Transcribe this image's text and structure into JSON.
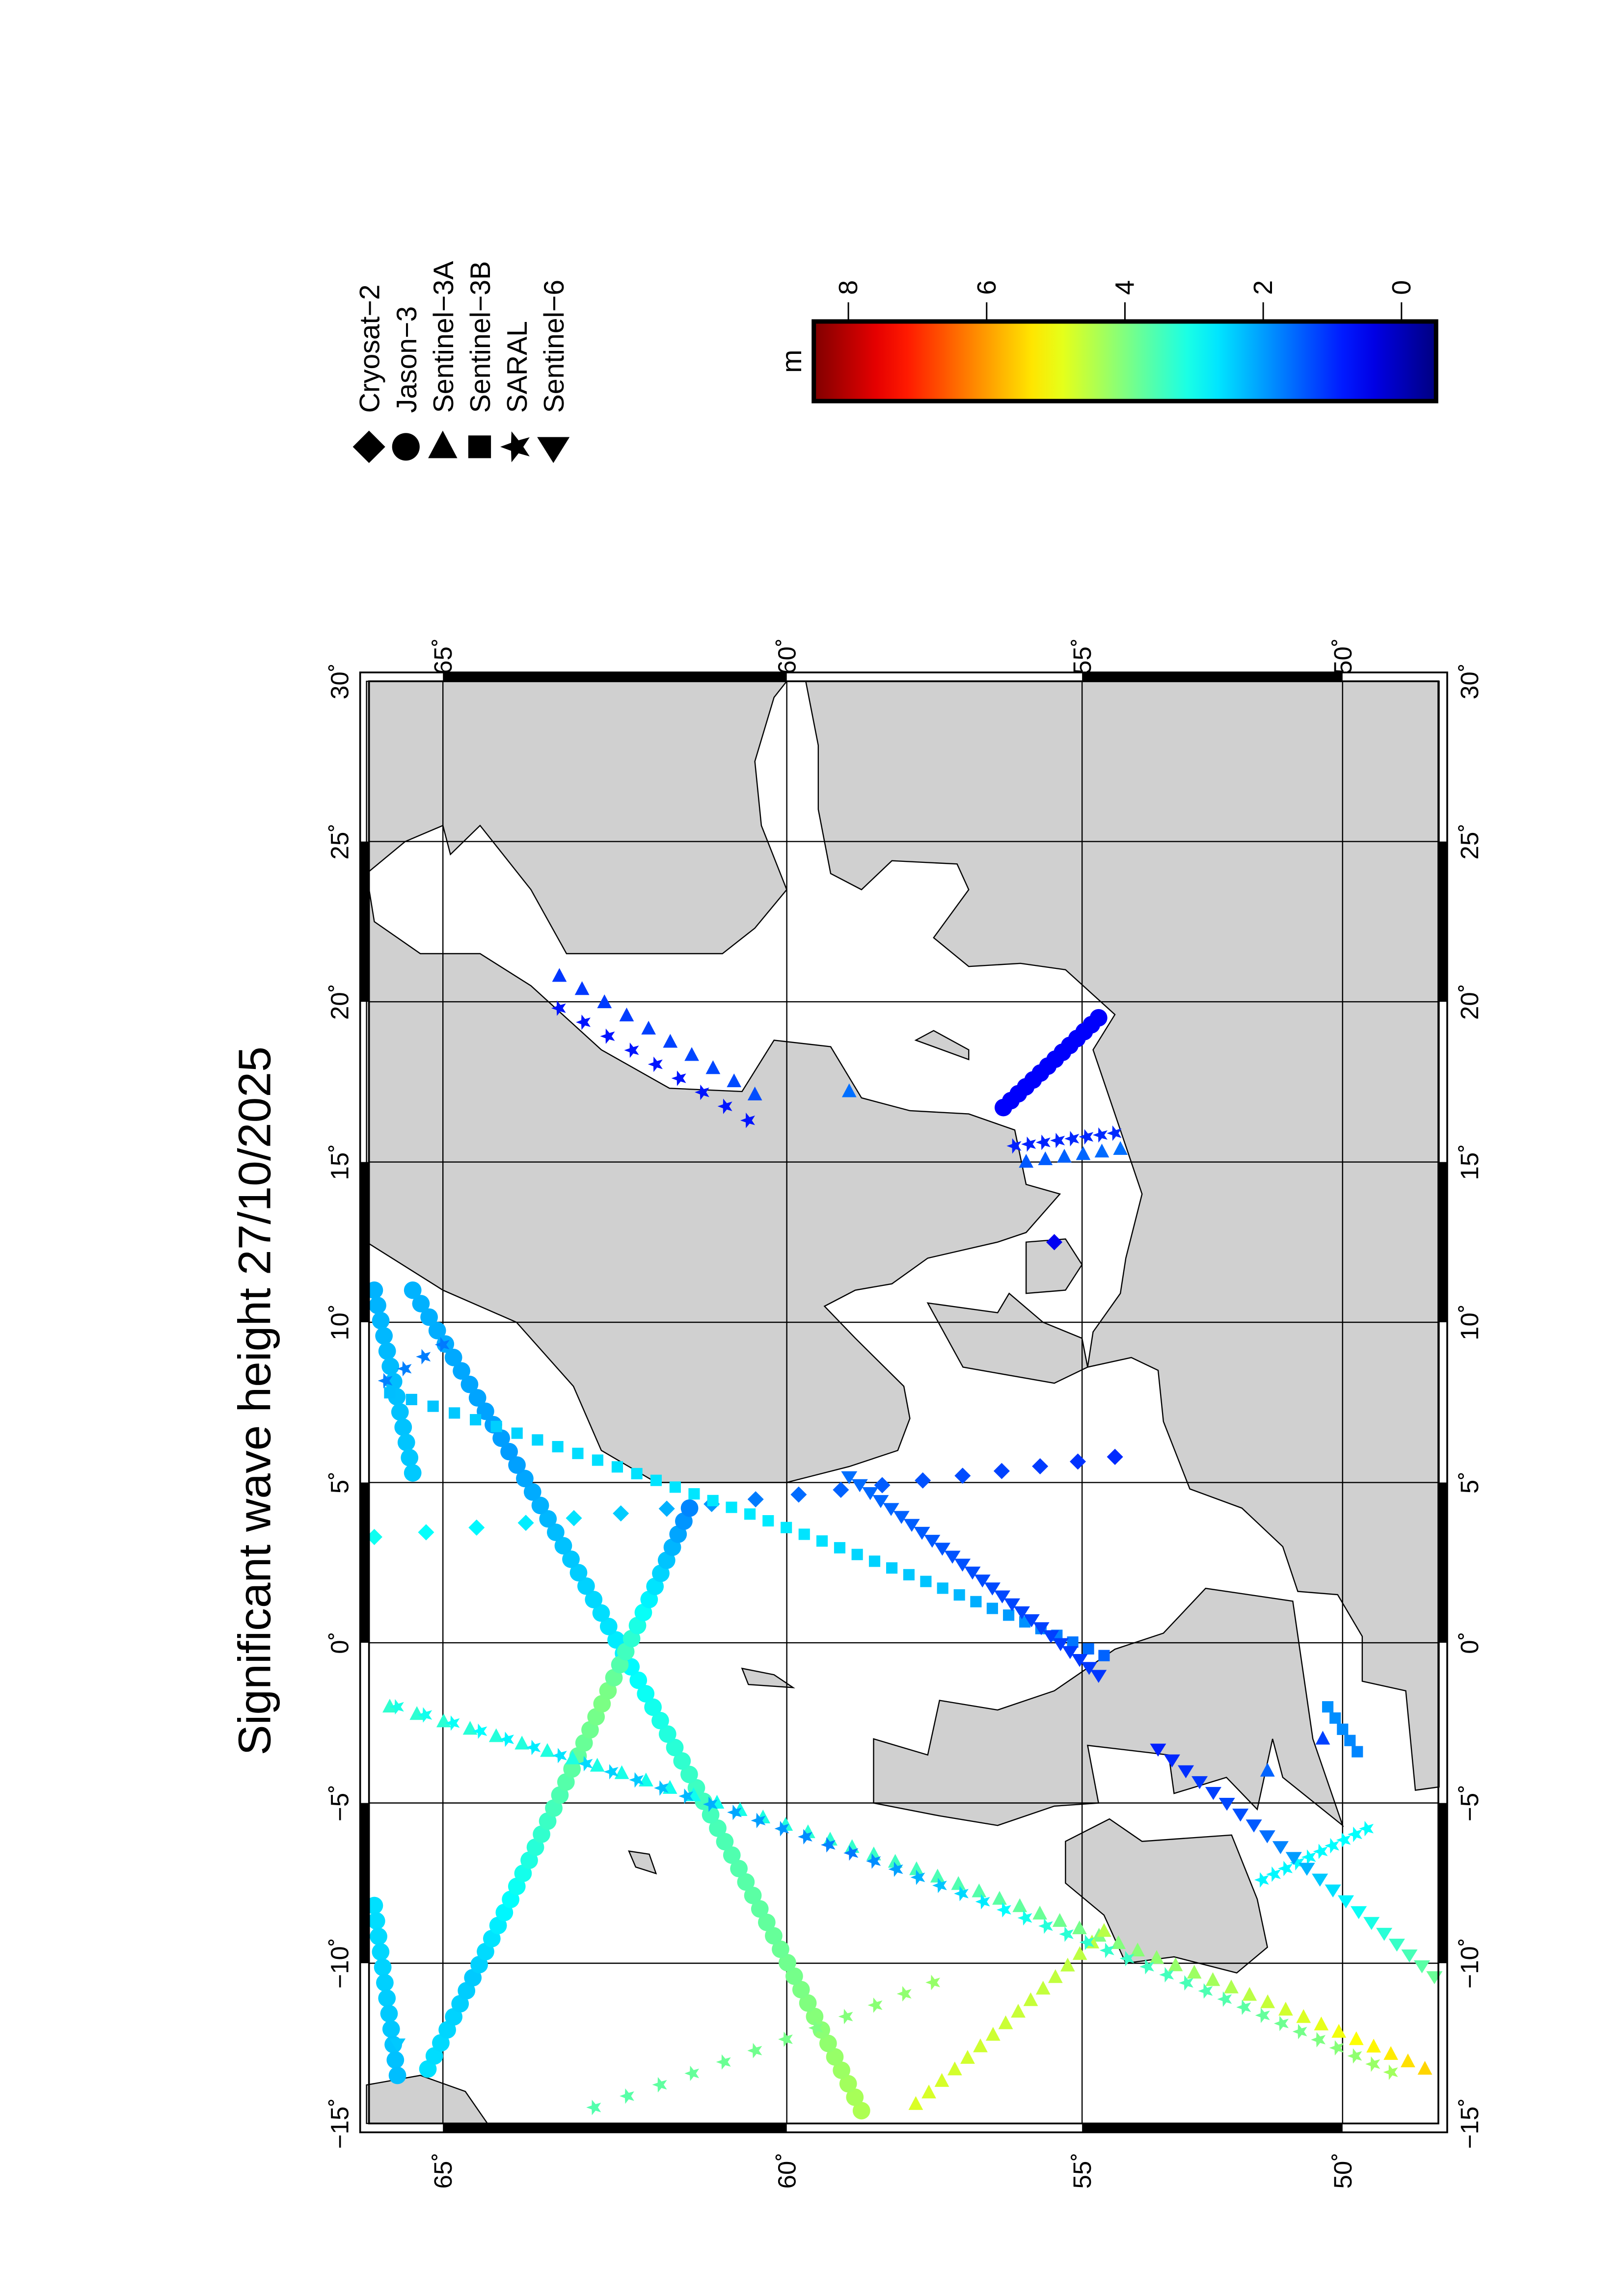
{
  "title": "Significant wave height 27/10/2025",
  "axes": {
    "lon_range": [
      -15,
      30
    ],
    "lat_range": [
      48,
      66
    ],
    "projection": "mercator",
    "grid": true,
    "lon_ticks": [
      -15,
      -10,
      -5,
      0,
      5,
      10,
      15,
      20,
      25,
      30
    ],
    "lon_tick_labels": [
      "−15˚",
      "−10˚",
      "−5˚",
      "0˚",
      "5˚",
      "10˚",
      "15˚",
      "20˚",
      "25˚",
      "30˚"
    ],
    "lat_ticks": [
      65,
      60,
      55,
      50
    ],
    "lat_tick_labels": [
      "65˚",
      "60˚",
      "55˚",
      "50˚"
    ]
  },
  "colors": {
    "land": "#d0d0d0",
    "ocean": "#ffffff",
    "coast": "#000000"
  },
  "colorbar": {
    "label": "m",
    "colormap": "jet",
    "range": [
      -0.5,
      8.5
    ],
    "ticks": [
      8,
      6,
      4,
      2,
      0
    ],
    "tick_labels": [
      "8",
      "6",
      "4",
      "2",
      "0"
    ]
  },
  "legend": [
    {
      "name": "Cryosat−2",
      "symbol": "diamond"
    },
    {
      "name": "Jason−3",
      "symbol": "circle"
    },
    {
      "name": "Sentinel−3A",
      "symbol": "triangle-left"
    },
    {
      "name": "Sentinel−3B",
      "symbol": "square"
    },
    {
      "name": "SARAL",
      "symbol": "star"
    },
    {
      "name": "Sentinel−6",
      "symbol": "triangle-right"
    }
  ],
  "tracks": [
    {
      "satellite": "Jason−3",
      "symbol": "circle",
      "from": [
        -14.6,
        58.8
      ],
      "to": [
        11.0,
        65.4
      ],
      "n": 62,
      "swh": [
        4.4,
        3.8,
        3.4,
        2.6,
        2.0,
        2.2
      ]
    },
    {
      "satellite": "Jason−3",
      "symbol": "circle",
      "from": [
        -13.3,
        65.2
      ],
      "to": [
        4.2,
        61.5
      ],
      "n": 44,
      "swh": [
        2.6,
        2.4,
        3.0,
        3.6,
        4.0,
        2.8,
        1.8
      ]
    },
    {
      "satellite": "Jason−3",
      "symbol": "circle",
      "from": [
        -8.2,
        65.9
      ],
      "to": [
        -13.5,
        65.6
      ],
      "n": 12,
      "swh": [
        2.6,
        2.3
      ]
    },
    {
      "satellite": "Jason−3",
      "symbol": "circle",
      "from": [
        11.0,
        65.9
      ],
      "to": [
        5.3,
        65.4
      ],
      "n": 13,
      "swh": [
        2.2,
        2.4
      ]
    },
    {
      "satellite": "Jason−3",
      "symbol": "circle",
      "from": [
        16.7,
        56.4
      ],
      "to": [
        19.5,
        54.7
      ],
      "n": 14,
      "swh": [
        0.6,
        0.6
      ]
    },
    {
      "satellite": "Cryosat−2",
      "symbol": "diamond",
      "from": [
        3.3,
        65.9
      ],
      "to": [
        5.8,
        54.4
      ],
      "n": 18,
      "swh": [
        3.0,
        2.6,
        1.6,
        1.3,
        1.0
      ]
    },
    {
      "satellite": "Cryosat−2",
      "symbol": "diamond",
      "from": [
        12.5,
        55.5
      ],
      "to": [
        12.5,
        55.5
      ],
      "n": 1,
      "swh": [
        0.5
      ]
    },
    {
      "satellite": "Sentinel−3A",
      "symbol": "triangle-left",
      "from": [
        -2.0,
        65.7
      ],
      "to": [
        -13.3,
        48.3
      ],
      "n": 50,
      "swh": [
        3.3,
        3.0,
        3.6,
        4.3,
        5.5
      ]
    },
    {
      "satellite": "Sentinel−3A",
      "symbol": "triangle-left",
      "from": [
        -14.4,
        57.9
      ],
      "to": [
        -9.0,
        54.6
      ],
      "n": 16,
      "swh": [
        4.8,
        4.5
      ]
    },
    {
      "satellite": "Sentinel−3A",
      "symbol": "triangle-left",
      "from": [
        20.8,
        63.4
      ],
      "to": [
        17.1,
        60.5
      ],
      "n": 10,
      "swh": [
        1.1,
        1.3
      ]
    },
    {
      "satellite": "Sentinel−3A",
      "symbol": "triangle-left",
      "from": [
        17.2,
        59.0
      ],
      "to": [
        17.2,
        59.0
      ],
      "n": 1,
      "swh": [
        1.6
      ]
    },
    {
      "satellite": "Sentinel−3A",
      "symbol": "triangle-left",
      "from": [
        15.0,
        56.0
      ],
      "to": [
        15.4,
        54.3
      ],
      "n": 6,
      "swh": [
        1.4,
        1.6
      ]
    },
    {
      "satellite": "Sentinel−3A",
      "symbol": "triangle-left",
      "from": [
        -4.0,
        51.5
      ],
      "to": [
        -3.0,
        50.4
      ],
      "n": 2,
      "swh": [
        1.5,
        1.2
      ]
    },
    {
      "satellite": "Sentinel−3B",
      "symbol": "square",
      "from": [
        7.8,
        65.7
      ],
      "to": [
        -0.4,
        54.6
      ],
      "n": 40,
      "swh": [
        2.3,
        2.6,
        2.7,
        2.3,
        1.5
      ]
    },
    {
      "satellite": "Sentinel−3B",
      "symbol": "square",
      "from": [
        -2.0,
        50.3
      ],
      "to": [
        -3.4,
        49.7
      ],
      "n": 5,
      "swh": [
        1.9,
        1.8
      ]
    },
    {
      "satellite": "SARAL",
      "symbol": "star",
      "from": [
        9.3,
        65.0
      ],
      "to": [
        7.8,
        66.0
      ],
      "n": 5,
      "swh": [
        1.7,
        1.8
      ]
    },
    {
      "satellite": "SARAL",
      "symbol": "star",
      "from": [
        -2.0,
        65.6
      ],
      "to": [
        -13.4,
        49.0
      ],
      "n": 46,
      "swh": [
        3.1,
        2.4,
        1.7,
        3.2,
        3.6,
        4.3
      ]
    },
    {
      "satellite": "SARAL",
      "symbol": "star",
      "from": [
        -14.5,
        62.9
      ],
      "to": [
        -10.6,
        57.6
      ],
      "n": 12,
      "swh": [
        3.6,
        4.2
      ]
    },
    {
      "satellite": "SARAL",
      "symbol": "star",
      "from": [
        19.8,
        63.4
      ],
      "to": [
        16.3,
        60.6
      ],
      "n": 9,
      "swh": [
        0.8,
        0.8
      ]
    },
    {
      "satellite": "SARAL",
      "symbol": "star",
      "from": [
        15.5,
        56.2
      ],
      "to": [
        15.9,
        54.4
      ],
      "n": 8,
      "swh": [
        0.9,
        1.0
      ]
    },
    {
      "satellite": "SARAL",
      "symbol": "star",
      "from": [
        -7.4,
        51.6
      ],
      "to": [
        -5.8,
        49.5
      ],
      "n": 10,
      "swh": [
        2.8,
        2.9
      ]
    },
    {
      "satellite": "Sentinel−6",
      "symbol": "triangle-right",
      "from": [
        5.2,
        59.0
      ],
      "to": [
        -1.0,
        54.7
      ],
      "n": 26,
      "swh": [
        1.6,
        1.3,
        1.1
      ]
    },
    {
      "satellite": "Sentinel−6",
      "symbol": "triangle-right",
      "from": [
        -3.3,
        53.6
      ],
      "to": [
        -10.4,
        48.1
      ],
      "n": 22,
      "swh": [
        0.9,
        1.4,
        2.8,
        3.8
      ]
    },
    {
      "satellite": "Sentinel−6",
      "symbol": "triangle-right",
      "from": [
        -12.5,
        65.6
      ],
      "to": [
        -12.5,
        65.6
      ],
      "n": 1,
      "swh": [
        2.4
      ]
    }
  ],
  "map": {
    "land": [
      [
        [
          5,
          62
        ],
        [
          5,
          60
        ],
        [
          5.5,
          59
        ],
        [
          6,
          58.2
        ],
        [
          7,
          58
        ],
        [
          8,
          58.1
        ],
        [
          9.5,
          58.9
        ],
        [
          10.5,
          59.4
        ],
        [
          11,
          58.9
        ],
        [
          11.2,
          58.3
        ],
        [
          12,
          57.7
        ],
        [
          12.5,
          56.5
        ],
        [
          12.8,
          56
        ],
        [
          14,
          55.4
        ],
        [
          14.3,
          56
        ],
        [
          16,
          56.2
        ],
        [
          16.5,
          57
        ],
        [
          16.6,
          58
        ],
        [
          17,
          58.8
        ],
        [
          18.6,
          59.3
        ],
        [
          18.8,
          60.2
        ],
        [
          17.2,
          60.7
        ],
        [
          17.3,
          61.8
        ],
        [
          18.5,
          62.8
        ],
        [
          20.5,
          63.8
        ],
        [
          21.5,
          64.5
        ],
        [
          21.5,
          65.3
        ],
        [
          22.5,
          65.9
        ],
        [
          24,
          66
        ],
        [
          25,
          65.5
        ],
        [
          25.5,
          65
        ],
        [
          24.6,
          64.9
        ],
        [
          25.5,
          64.5
        ],
        [
          23.5,
          63.8
        ],
        [
          21.5,
          63.3
        ],
        [
          21.5,
          62.2
        ],
        [
          21.5,
          61
        ],
        [
          22.3,
          60.5
        ],
        [
          23.5,
          60
        ],
        [
          25.5,
          60.4
        ],
        [
          27.5,
          60.5
        ],
        [
          29.5,
          60.2
        ],
        [
          30,
          60
        ],
        [
          30,
          66
        ],
        [
          13,
          66
        ],
        [
          12.5,
          66
        ],
        [
          11,
          65
        ],
        [
          10,
          64
        ],
        [
          8,
          63.2
        ],
        [
          6,
          62.8
        ]
      ],
      [
        [
          8.6,
          54.9
        ],
        [
          9.7,
          54.8
        ],
        [
          10.9,
          54.3
        ],
        [
          12,
          54.2
        ],
        [
          14,
          53.9
        ],
        [
          16,
          54.3
        ],
        [
          18.5,
          54.8
        ],
        [
          19.6,
          54.4
        ],
        [
          21,
          55.3
        ],
        [
          21.2,
          56.1
        ],
        [
          21.1,
          57
        ],
        [
          22,
          57.6
        ],
        [
          23.5,
          57
        ],
        [
          24.3,
          57.2
        ],
        [
          24.4,
          58.3
        ],
        [
          23.5,
          58.8
        ],
        [
          24,
          59.3
        ],
        [
          26,
          59.5
        ],
        [
          28,
          59.5
        ],
        [
          30,
          59.7
        ],
        [
          30,
          48
        ],
        [
          -4.5,
          48
        ],
        [
          -4.6,
          48.5
        ],
        [
          -1.5,
          48.7
        ],
        [
          -1.2,
          49.6
        ],
        [
          0.2,
          49.6
        ],
        [
          1.5,
          50.1
        ],
        [
          1.6,
          50.9
        ],
        [
          3,
          51.2
        ],
        [
          4.2,
          52
        ],
        [
          4.8,
          53
        ],
        [
          6.9,
          53.5
        ],
        [
          8.5,
          53.6
        ],
        [
          8.9,
          54.1
        ]
      ],
      [
        [
          8.1,
          55.5
        ],
        [
          8.6,
          57.1
        ],
        [
          10.6,
          57.7
        ],
        [
          10.3,
          56.5
        ],
        [
          10.9,
          56.3
        ],
        [
          10,
          55.7
        ],
        [
          9.5,
          55
        ],
        [
          8.6,
          54.9
        ]
      ],
      [
        [
          10.9,
          56
        ],
        [
          12.5,
          56
        ],
        [
          12.6,
          55.3
        ],
        [
          11.8,
          55
        ],
        [
          11,
          55.3
        ]
      ],
      [
        [
          18.2,
          57
        ],
        [
          18.8,
          57.9
        ],
        [
          19.1,
          57.6
        ],
        [
          18.5,
          57
        ]
      ],
      [
        [
          -5.7,
          50
        ],
        [
          -3,
          50.6
        ],
        [
          1.3,
          51
        ],
        [
          1.7,
          52.7
        ],
        [
          0.3,
          53.5
        ],
        [
          -0.2,
          54.4
        ],
        [
          -1.5,
          55.5
        ],
        [
          -2.1,
          56.5
        ],
        [
          -1.8,
          57.5
        ],
        [
          -3.5,
          57.7
        ],
        [
          -3,
          58.6
        ],
        [
          -5,
          58.6
        ],
        [
          -5.4,
          57.5
        ],
        [
          -5.7,
          56.5
        ],
        [
          -5.1,
          55.5
        ],
        [
          -5,
          54.7
        ],
        [
          -3.2,
          54.9
        ],
        [
          -3.5,
          53.4
        ],
        [
          -4.7,
          53.3
        ],
        [
          -4.2,
          52.3
        ],
        [
          -5.2,
          51.7
        ],
        [
          -3,
          51.4
        ],
        [
          -4.2,
          51.2
        ]
      ],
      [
        [
          -6,
          52.2
        ],
        [
          -6.2,
          53.9
        ],
        [
          -5.5,
          54.5
        ],
        [
          -6.2,
          55.3
        ],
        [
          -7.5,
          55.3
        ],
        [
          -8.5,
          54.6
        ],
        [
          -10,
          54.2
        ],
        [
          -9.8,
          53.3
        ],
        [
          -10.3,
          52.1
        ],
        [
          -9.5,
          51.5
        ],
        [
          -8,
          51.7
        ],
        [
          -6.4,
          52.1
        ]
      ],
      [
        [
          -15,
          64.4
        ],
        [
          -14,
          64.7
        ],
        [
          -13.5,
          65.3
        ],
        [
          -13.8,
          66
        ],
        [
          -15,
          66
        ]
      ],
      [
        [
          -7.2,
          62.0
        ],
        [
          -6.6,
          62.1
        ],
        [
          -6.5,
          62.4
        ],
        [
          -7.0,
          62.3
        ]
      ],
      [
        [
          -1.4,
          59.9
        ],
        [
          -1.0,
          60.2
        ],
        [
          -0.8,
          60.7
        ],
        [
          -1.3,
          60.6
        ]
      ]
    ]
  }
}
